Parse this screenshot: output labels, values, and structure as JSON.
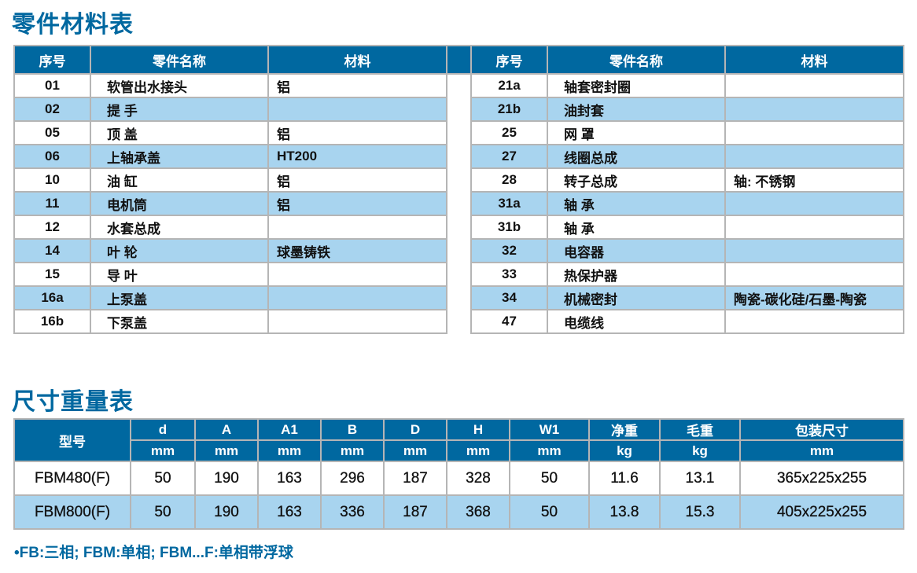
{
  "parts_title": "零件材料表",
  "parts_headers": [
    "序号",
    "零件名称",
    "材料"
  ],
  "parts_left": [
    {
      "no": "01",
      "name": "软管出水接头",
      "material": "铝"
    },
    {
      "no": "02",
      "name": "提  手",
      "material": ""
    },
    {
      "no": "05",
      "name": "顶  盖",
      "material": "铝"
    },
    {
      "no": "06",
      "name": "上轴承盖",
      "material": "HT200"
    },
    {
      "no": "10",
      "name": "油  缸",
      "material": "铝"
    },
    {
      "no": "11",
      "name": "电机筒",
      "material": "铝"
    },
    {
      "no": "12",
      "name": "水套总成",
      "material": ""
    },
    {
      "no": "14",
      "name": "叶  轮",
      "material": "球墨铸铁"
    },
    {
      "no": "15",
      "name": "导  叶",
      "material": ""
    },
    {
      "no": "16a",
      "name": "上泵盖",
      "material": ""
    },
    {
      "no": "16b",
      "name": "下泵盖",
      "material": ""
    }
  ],
  "parts_right": [
    {
      "no": "21a",
      "name": "轴套密封圈",
      "material": ""
    },
    {
      "no": "21b",
      "name": "油封套",
      "material": ""
    },
    {
      "no": "25",
      "name": "网  罩",
      "material": ""
    },
    {
      "no": "27",
      "name": "线圈总成",
      "material": ""
    },
    {
      "no": "28",
      "name": "转子总成",
      "material": "轴: 不锈钢"
    },
    {
      "no": "31a",
      "name": "轴  承",
      "material": ""
    },
    {
      "no": "31b",
      "name": "轴  承",
      "material": ""
    },
    {
      "no": "32",
      "name": "电容器",
      "material": ""
    },
    {
      "no": "33",
      "name": "热保护器",
      "material": ""
    },
    {
      "no": "34",
      "name": "机械密封",
      "material": "陶瓷-碳化硅/石墨-陶瓷"
    },
    {
      "no": "47",
      "name": "电缆线",
      "material": ""
    }
  ],
  "dims_title": "尺寸重量表",
  "dims_model_header": "型号",
  "dims_headers": [
    "d",
    "A",
    "A1",
    "B",
    "D",
    "H",
    "W1",
    "净重",
    "毛重",
    "包装尺寸"
  ],
  "dims_units": [
    "mm",
    "mm",
    "mm",
    "mm",
    "mm",
    "mm",
    "mm",
    "kg",
    "kg",
    "mm"
  ],
  "dims_rows": [
    {
      "model": "FBM480(F)",
      "values": [
        "50",
        "190",
        "163",
        "296",
        "187",
        "328",
        "50",
        "11.6",
        "13.1",
        "365x225x255"
      ]
    },
    {
      "model": "FBM800(F)",
      "values": [
        "50",
        "190",
        "163",
        "336",
        "187",
        "368",
        "50",
        "13.8",
        "15.3",
        "405x225x255"
      ]
    }
  ],
  "note": "FB:三相; FBM:单相; FBM...F:单相带浮球",
  "colors": {
    "accent": "#0068a0",
    "row_alt": "#a8d4ef"
  }
}
